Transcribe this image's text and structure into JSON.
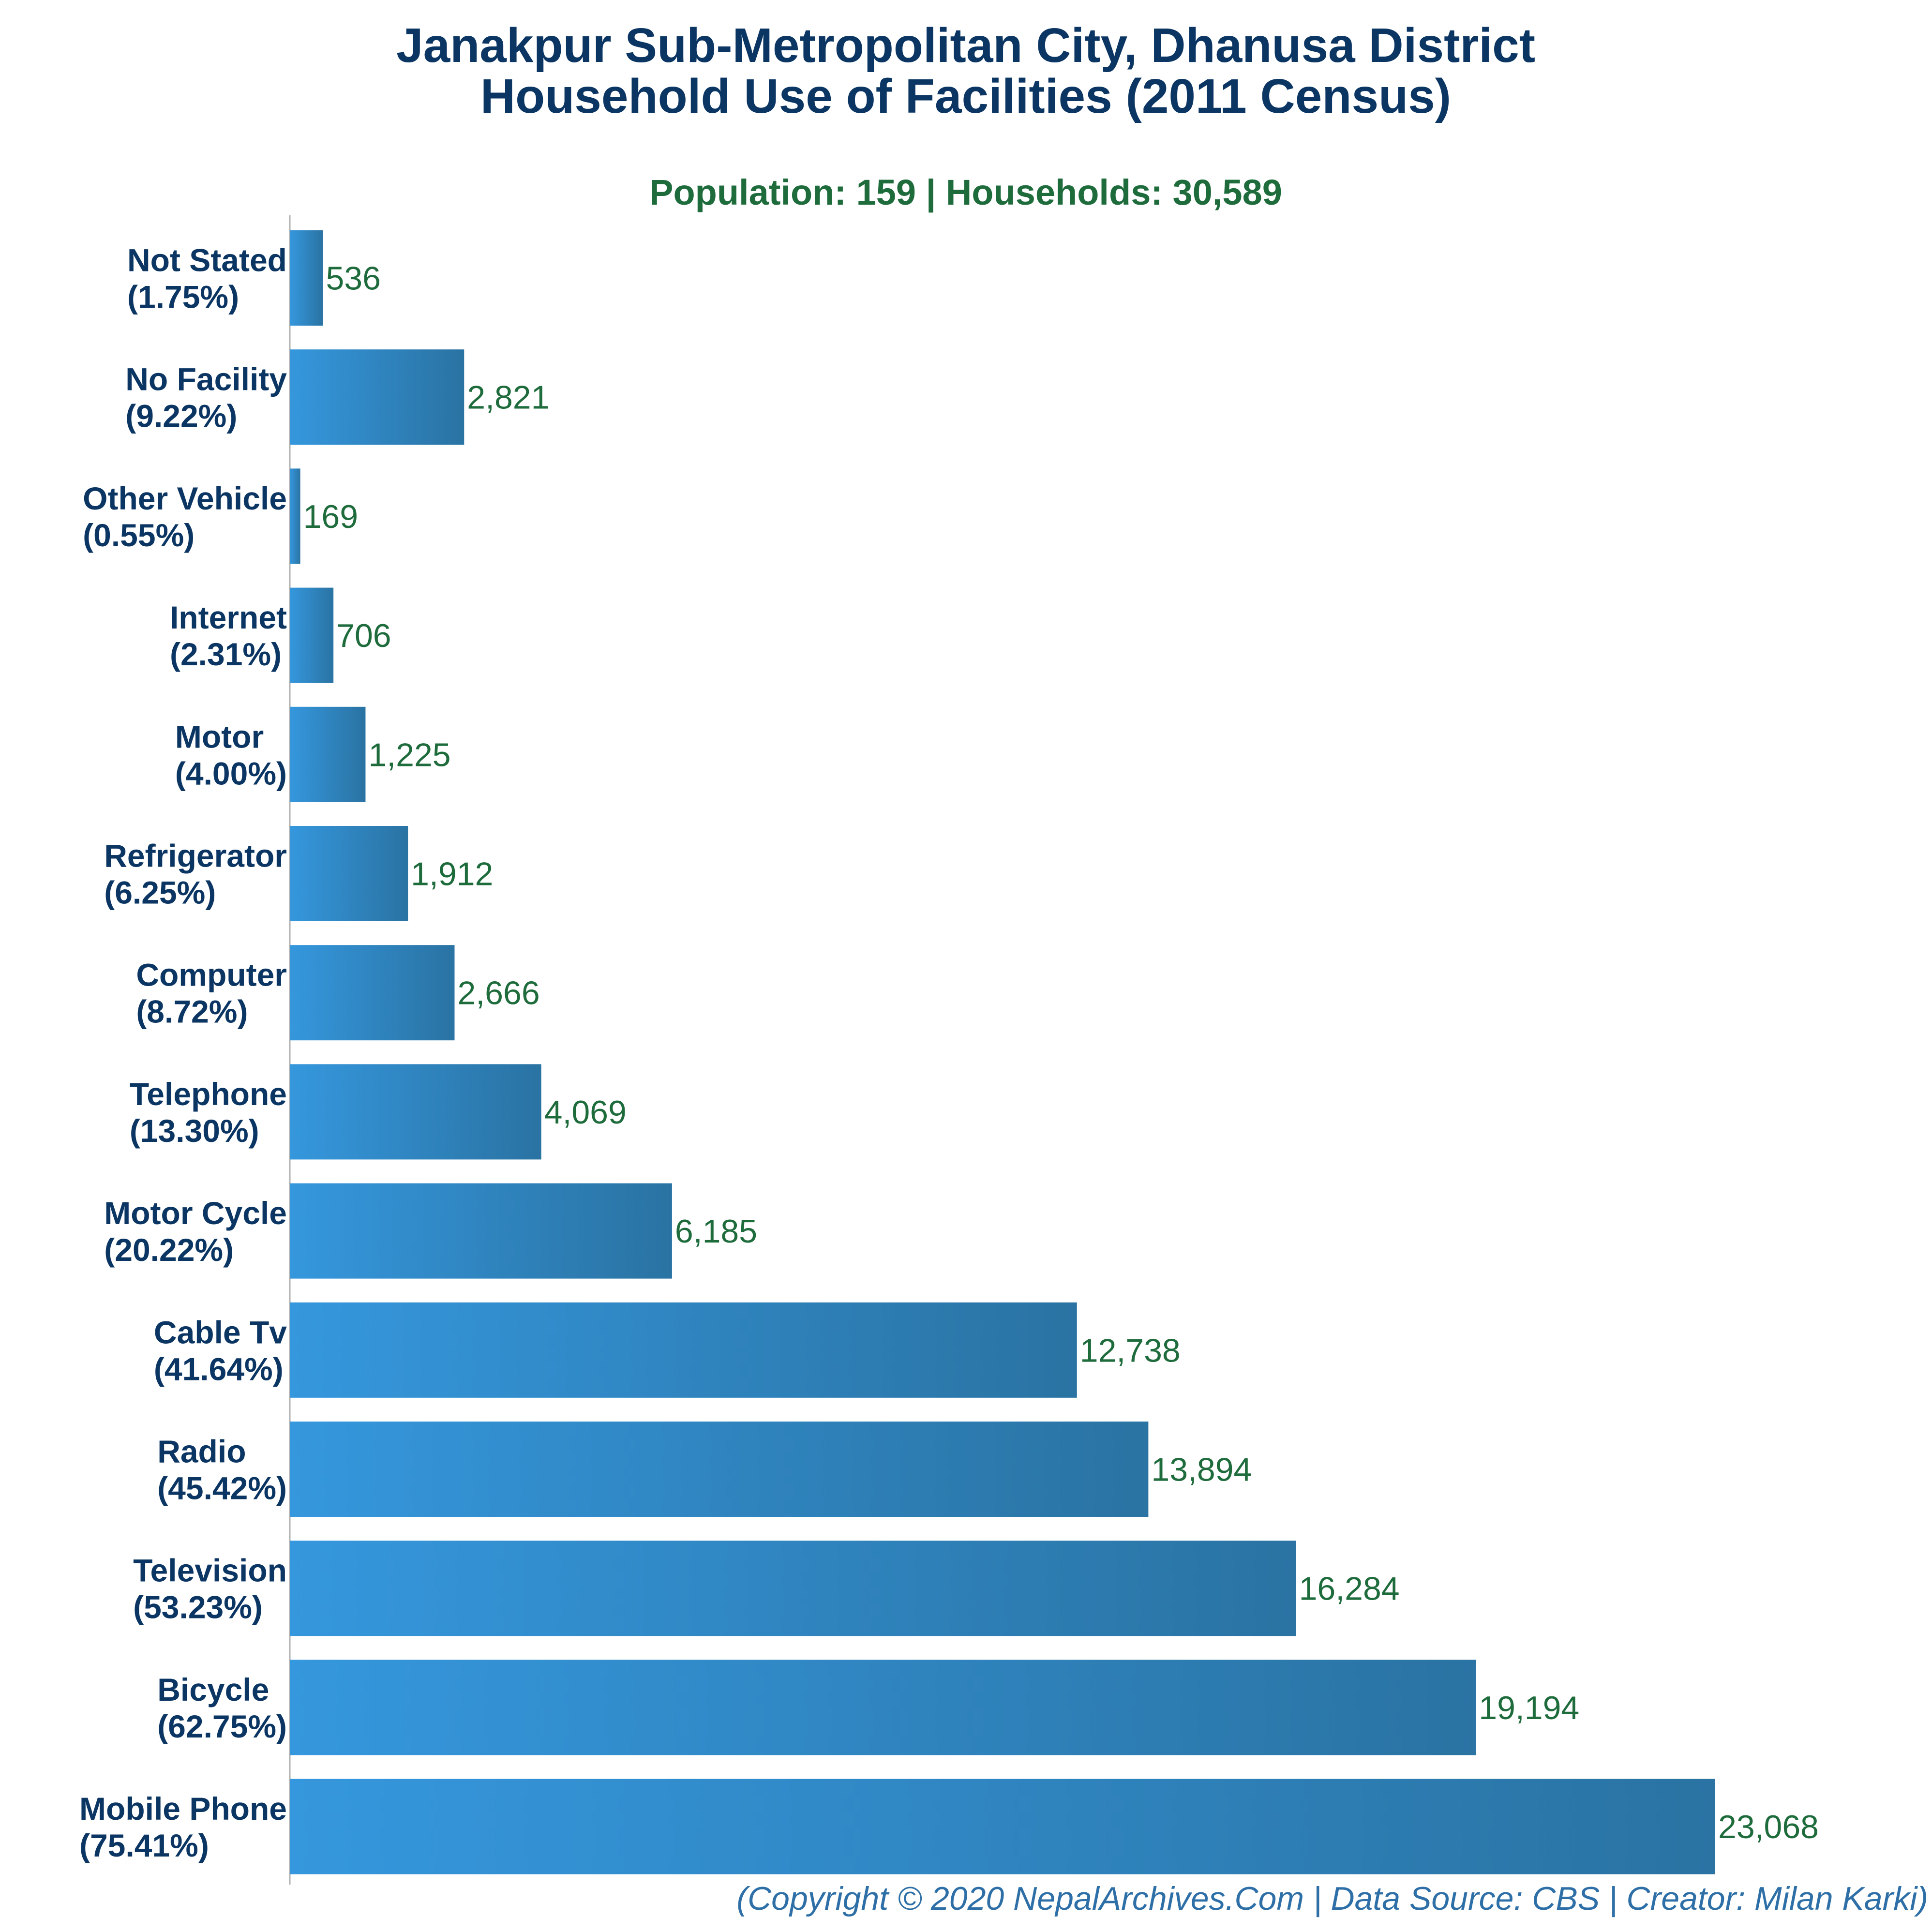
{
  "colors": {
    "title": "#0b3563",
    "subtitle": "#1e6b3c",
    "value_label": "#1e6b3c",
    "category_label": "#0b3563",
    "footer": "#2d6fa6",
    "bar_start": "#3597dd",
    "bar_end": "#2a73a3",
    "axis": "#b0b0b0"
  },
  "chart_data": {
    "type": "bar",
    "orientation": "horizontal",
    "title": "Janakpur Sub-Metropolitan City, Dhanusa District",
    "title_line2": "Household Use of Facilities (2011 Census)",
    "subtitle": "Population: 159 | Households: 30,589",
    "categories": [
      "Not Stated",
      "No Facility",
      "Other Vehicle",
      "Internet",
      "Motor",
      "Refrigerator",
      "Computer",
      "Telephone",
      "Motor Cycle",
      "Cable Tv",
      "Radio",
      "Television",
      "Bicycle",
      "Mobile Phone"
    ],
    "percent_labels": [
      "(1.75%)",
      "(9.22%)",
      "(0.55%)",
      "(2.31%)",
      "(4.00%)",
      "(6.25%)",
      "(8.72%)",
      "(13.30%)",
      "(20.22%)",
      "(41.64%)",
      "(45.42%)",
      "(53.23%)",
      "(62.75%)",
      "(75.41%)"
    ],
    "values": [
      536,
      2821,
      169,
      706,
      1225,
      1912,
      2666,
      4069,
      6185,
      12738,
      13894,
      16284,
      19194,
      23068
    ],
    "value_labels": [
      "536",
      "2,821",
      "169",
      "706",
      "1,225",
      "1,912",
      "2,666",
      "4,069",
      "6,185",
      "12,738",
      "13,894",
      "16,284",
      "19,194",
      "23,068"
    ],
    "xlim": [
      0,
      23068
    ],
    "grid": false,
    "legend": "none"
  },
  "footer": {
    "text": "(Copyright © 2020 NepalArchives.Com | Data Source: CBS | Creator: Milan Karki)"
  }
}
